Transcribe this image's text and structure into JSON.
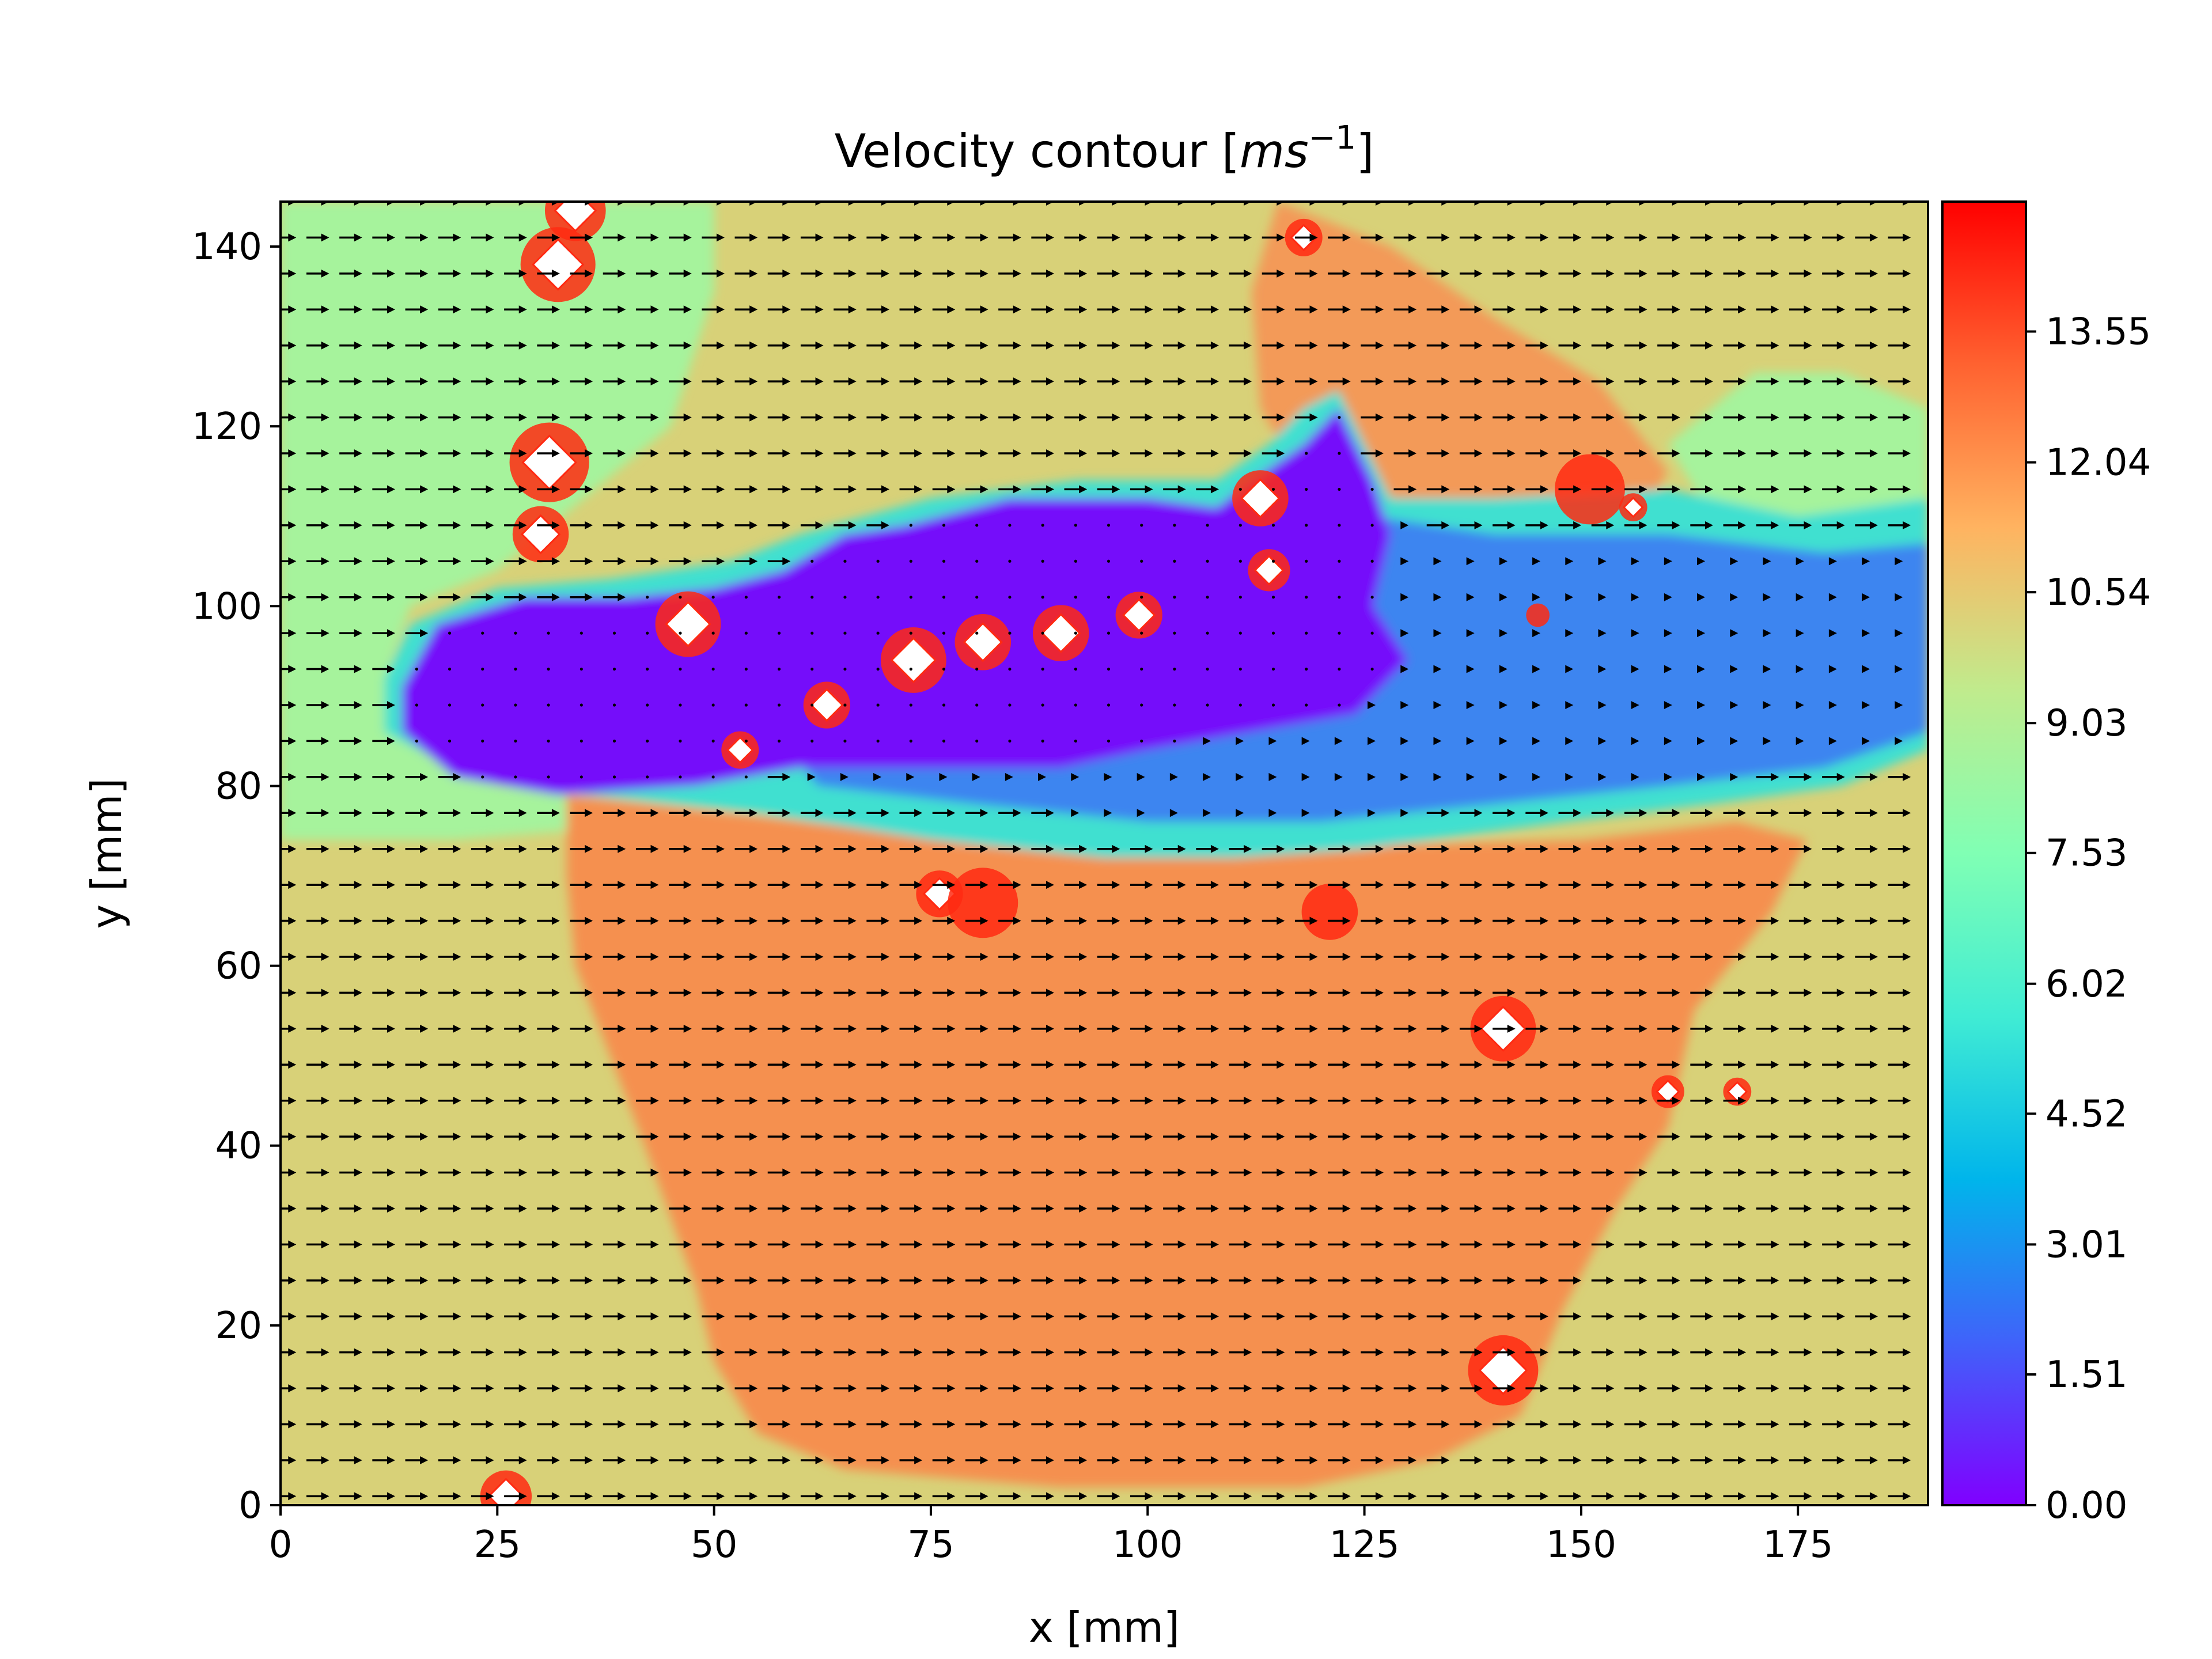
{
  "chart_data": {
    "type": "heatmap",
    "title_prefix": "Velocity contour [",
    "title_math": "ms",
    "title_sup": "−1",
    "title_suffix": "]",
    "xlabel": "x [mm]",
    "ylabel": "y [mm]",
    "xlim": [
      0,
      190
    ],
    "ylim": [
      0,
      145
    ],
    "xticks": [
      0,
      25,
      50,
      75,
      100,
      125,
      150,
      175
    ],
    "yticks": [
      0,
      20,
      40,
      60,
      80,
      100,
      120,
      140
    ],
    "colorbar": {
      "colormap": "rainbow",
      "range": [
        0,
        15.05
      ],
      "ticks": [
        "0.00",
        "1.51",
        "3.01",
        "4.52",
        "6.02",
        "7.53",
        "9.03",
        "10.54",
        "12.04",
        "13.55"
      ],
      "tick_values": [
        0.0,
        1.51,
        3.01,
        4.52,
        6.02,
        7.53,
        9.03,
        10.54,
        12.04,
        13.55
      ],
      "colors": [
        "#8000ff",
        "#4062fa",
        "#00b5eb",
        "#40ecd4",
        "#80ffb4",
        "#c0eb8d",
        "#ffb360",
        "#ff6230",
        "#ff0000"
      ]
    },
    "grid": false,
    "fill_colors": {
      "background": "#d8d178",
      "free_stream_left": "#a6f39c",
      "fast_lower": "#f5904f",
      "fast_upper": "#f39a58",
      "wake_core": "#7510fa",
      "wake_blue": "#3d85f0",
      "wake_edge": "#3fe0d0",
      "peak": "#ff2a12",
      "saturated": "#ffffff"
    },
    "regions": [
      {
        "name": "free-stream-left",
        "level": "free_stream_left",
        "polygon": [
          [
            0,
            145
          ],
          [
            50,
            145
          ],
          [
            50,
            135
          ],
          [
            45,
            120
          ],
          [
            35,
            112
          ],
          [
            25,
            104
          ],
          [
            15,
            100
          ],
          [
            12,
            92
          ],
          [
            15,
            85
          ],
          [
            25,
            80
          ],
          [
            35,
            79
          ],
          [
            33,
            75
          ],
          [
            20,
            74
          ],
          [
            0,
            74
          ]
        ]
      },
      {
        "name": "free-stream-right",
        "level": "free_stream_left",
        "polygon": [
          [
            170,
            126
          ],
          [
            180,
            126
          ],
          [
            190,
            122
          ],
          [
            190,
            100
          ],
          [
            180,
            106
          ],
          [
            165,
            110
          ],
          [
            160,
            118
          ]
        ]
      },
      {
        "name": "fast-lower",
        "level": "fast_lower",
        "polygon": [
          [
            33,
            79
          ],
          [
            70,
            75
          ],
          [
            110,
            73
          ],
          [
            150,
            74
          ],
          [
            168,
            76
          ],
          [
            176,
            74
          ],
          [
            172,
            66
          ],
          [
            163,
            55
          ],
          [
            160,
            42
          ],
          [
            154,
            33
          ],
          [
            148,
            22
          ],
          [
            143,
            10
          ],
          [
            133,
            5
          ],
          [
            118,
            2
          ],
          [
            90,
            2
          ],
          [
            65,
            4
          ],
          [
            55,
            8
          ],
          [
            50,
            16
          ],
          [
            48,
            24
          ],
          [
            45,
            32
          ],
          [
            42,
            40
          ],
          [
            38,
            50
          ],
          [
            34,
            60
          ],
          [
            33,
            70
          ]
        ]
      },
      {
        "name": "fast-upper",
        "level": "fast_upper",
        "polygon": [
          [
            115,
            145
          ],
          [
            128,
            140
          ],
          [
            140,
            132
          ],
          [
            152,
            125
          ],
          [
            160,
            115
          ],
          [
            156,
            108
          ],
          [
            145,
            107
          ],
          [
            130,
            110
          ],
          [
            119,
            112
          ],
          [
            113,
            122
          ],
          [
            112,
            135
          ]
        ]
      },
      {
        "name": "wake-edge",
        "level": "wake_edge",
        "polygon": [
          [
            12,
            92
          ],
          [
            15,
            98
          ],
          [
            25,
            102
          ],
          [
            38,
            103
          ],
          [
            52,
            105
          ],
          [
            60,
            108
          ],
          [
            75,
            112
          ],
          [
            92,
            114
          ],
          [
            108,
            114
          ],
          [
            114,
            118
          ],
          [
            118,
            122
          ],
          [
            122,
            124
          ],
          [
            128,
            112
          ],
          [
            140,
            112
          ],
          [
            160,
            113
          ],
          [
            175,
            110
          ],
          [
            190,
            112
          ],
          [
            190,
            84
          ],
          [
            180,
            80
          ],
          [
            165,
            78
          ],
          [
            148,
            76
          ],
          [
            125,
            73
          ],
          [
            110,
            72
          ],
          [
            95,
            72
          ],
          [
            75,
            74
          ],
          [
            55,
            77
          ],
          [
            35,
            79
          ],
          [
            22,
            81
          ],
          [
            12,
            86
          ]
        ]
      },
      {
        "name": "wake-blue",
        "level": "wake_blue",
        "polygon": [
          [
            55,
            100
          ],
          [
            68,
            104
          ],
          [
            80,
            106
          ],
          [
            92,
            108
          ],
          [
            108,
            110
          ],
          [
            118,
            116
          ],
          [
            122,
            120
          ],
          [
            126,
            110
          ],
          [
            140,
            108
          ],
          [
            160,
            108
          ],
          [
            178,
            106
          ],
          [
            190,
            107
          ],
          [
            190,
            86
          ],
          [
            178,
            82
          ],
          [
            160,
            80
          ],
          [
            140,
            78
          ],
          [
            120,
            76
          ],
          [
            100,
            76
          ],
          [
            80,
            78
          ],
          [
            62,
            80
          ],
          [
            55,
            88
          ]
        ]
      },
      {
        "name": "wake-core",
        "level": "wake_core",
        "polygon": [
          [
            14,
            91
          ],
          [
            18,
            98
          ],
          [
            28,
            101
          ],
          [
            40,
            101
          ],
          [
            50,
            102
          ],
          [
            58,
            104
          ],
          [
            65,
            108
          ],
          [
            72,
            109
          ],
          [
            84,
            112
          ],
          [
            100,
            112
          ],
          [
            108,
            111
          ],
          [
            112,
            114
          ],
          [
            118,
            118
          ],
          [
            122,
            122
          ],
          [
            126,
            114
          ],
          [
            128,
            108
          ],
          [
            126,
            100
          ],
          [
            130,
            94
          ],
          [
            124,
            88
          ],
          [
            112,
            86
          ],
          [
            100,
            84
          ],
          [
            90,
            82
          ],
          [
            75,
            82
          ],
          [
            60,
            82
          ],
          [
            48,
            80
          ],
          [
            32,
            79
          ],
          [
            20,
            81
          ],
          [
            14,
            86
          ]
        ]
      },
      {
        "name": "wake-lobe",
        "level": "wake_blue",
        "polygon": [
          [
            140,
            98
          ],
          [
            150,
            96
          ],
          [
            158,
            92
          ],
          [
            165,
            92
          ],
          [
            172,
            92
          ],
          [
            178,
            90
          ],
          [
            180,
            86
          ],
          [
            168,
            83
          ],
          [
            152,
            84
          ],
          [
            142,
            88
          ]
        ]
      }
    ],
    "hotspots": [
      {
        "x": 32,
        "y": 138,
        "r": 3.2,
        "white": true
      },
      {
        "x": 31,
        "y": 116,
        "r": 3.4,
        "white": true
      },
      {
        "x": 30,
        "y": 108,
        "r": 2.4,
        "white": true
      },
      {
        "x": 34,
        "y": 144,
        "r": 2.6,
        "white": true
      },
      {
        "x": 47,
        "y": 98,
        "r": 2.8,
        "white": true
      },
      {
        "x": 63,
        "y": 89,
        "r": 2.0,
        "white": true
      },
      {
        "x": 53,
        "y": 84,
        "r": 1.6,
        "white": true
      },
      {
        "x": 73,
        "y": 94,
        "r": 2.8,
        "white": true
      },
      {
        "x": 81,
        "y": 96,
        "r": 2.4,
        "white": true
      },
      {
        "x": 90,
        "y": 97,
        "r": 2.4,
        "white": true
      },
      {
        "x": 99,
        "y": 99,
        "r": 2.0,
        "white": true
      },
      {
        "x": 113,
        "y": 112,
        "r": 2.4,
        "white": true
      },
      {
        "x": 114,
        "y": 104,
        "r": 1.8,
        "white": true
      },
      {
        "x": 118,
        "y": 141,
        "r": 1.6,
        "white": true
      },
      {
        "x": 156,
        "y": 111,
        "r": 1.2,
        "white": true
      },
      {
        "x": 145,
        "y": 99,
        "r": 1.0,
        "white": false
      },
      {
        "x": 76,
        "y": 68,
        "r": 2.0,
        "white": true
      },
      {
        "x": 81,
        "y": 67,
        "r": 3.0,
        "white": false
      },
      {
        "x": 121,
        "y": 66,
        "r": 2.4,
        "white": false
      },
      {
        "x": 141,
        "y": 53,
        "r": 2.8,
        "white": true
      },
      {
        "x": 160,
        "y": 46,
        "r": 1.4,
        "white": true
      },
      {
        "x": 168,
        "y": 46,
        "r": 1.2,
        "white": true
      },
      {
        "x": 141,
        "y": 15,
        "r": 3.0,
        "white": true
      },
      {
        "x": 26,
        "y": 1,
        "r": 2.2,
        "white": true
      },
      {
        "x": 151,
        "y": 113,
        "r": 3.0,
        "white": false
      }
    ],
    "quiver": {
      "x_start": 0.5,
      "x_step": 3.8,
      "x_count": 50,
      "y_start": 1.0,
      "y_step": 4.0,
      "y_count": 37,
      "typical_speed_mm_s": 11.0,
      "wake_speed_mm_s": 0.6,
      "arrow_color": "#000000"
    }
  }
}
